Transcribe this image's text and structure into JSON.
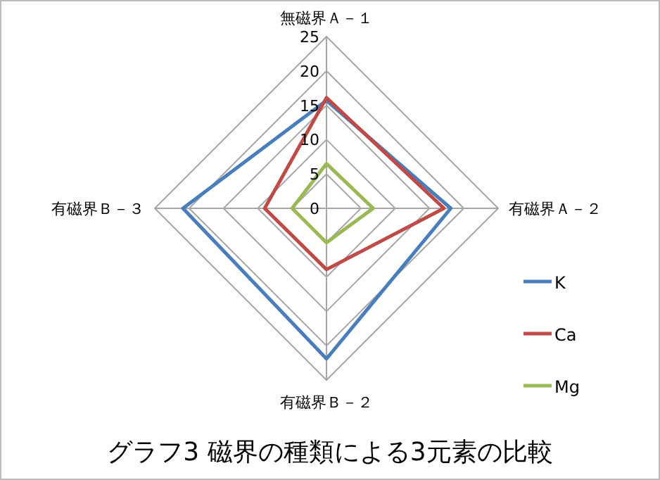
{
  "chart_data": {
    "type": "radar",
    "title": "グラフ3  磁界の種類による3元素の比較",
    "categories": [
      "無磁界Ａ－１",
      "有磁界Ａ－２",
      "有磁界Ｂ－２",
      "有磁界Ｂ－３"
    ],
    "series": [
      {
        "name": "K",
        "color": "#4a7ebb",
        "values": [
          15.7,
          18.1,
          21.9,
          20.9
        ]
      },
      {
        "name": "Ca",
        "color": "#be4b48",
        "values": [
          16.1,
          17.1,
          8.9,
          9
        ]
      },
      {
        "name": "Mg",
        "color": "#98b954",
        "values": [
          6.5,
          6.8,
          5,
          5
        ]
      }
    ],
    "ylim": [
      0,
      25
    ],
    "yticks": [
      0,
      5,
      10,
      15,
      20,
      25
    ],
    "grid": true,
    "legend": "right"
  }
}
